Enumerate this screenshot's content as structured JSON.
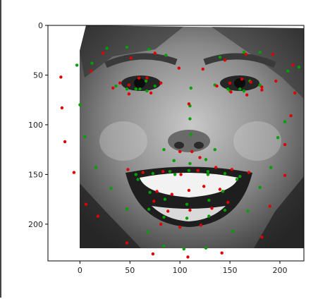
{
  "chart_data": {
    "type": "scatter",
    "background": "image",
    "xlim": [
      -32,
      224
    ],
    "ylim": [
      237,
      0
    ],
    "x_ticks": [
      0,
      50,
      100,
      150,
      200
    ],
    "y_ticks": [
      0,
      50,
      100,
      150,
      200
    ],
    "x_tick_labels": [
      "0",
      "50",
      "100",
      "150",
      "200"
    ],
    "y_tick_labels": [
      "0",
      "50",
      "100",
      "150",
      "200"
    ],
    "grid": false,
    "image_extent": {
      "x": [
        0,
        224
      ],
      "y": [
        0,
        224
      ]
    },
    "series": [
      {
        "color": "#00a000",
        "points": [
          [
            -3,
            40
          ],
          [
            12,
            38
          ],
          [
            27,
            23
          ],
          [
            47,
            22
          ],
          [
            69,
            24
          ],
          [
            86,
            30
          ],
          [
            140,
            32
          ],
          [
            164,
            27
          ],
          [
            180,
            27
          ],
          [
            208,
            46
          ],
          [
            219,
            42
          ],
          [
            0,
            80
          ],
          [
            5,
            112
          ],
          [
            16,
            143
          ],
          [
            31,
            164
          ],
          [
            47,
            185
          ],
          [
            68,
            208
          ],
          [
            84,
            222
          ],
          [
            104,
            225
          ],
          [
            126,
            224
          ],
          [
            153,
            207
          ],
          [
            168,
            187
          ],
          [
            180,
            163
          ],
          [
            191,
            143
          ],
          [
            198,
            113
          ],
          [
            205,
            97
          ],
          [
            36,
            61
          ],
          [
            47,
            64
          ],
          [
            60,
            64
          ],
          [
            66,
            56
          ],
          [
            75,
            61
          ],
          [
            135,
            60
          ],
          [
            148,
            64
          ],
          [
            160,
            64
          ],
          [
            170,
            56
          ],
          [
            180,
            60
          ],
          [
            56,
            64
          ],
          [
            67,
            66
          ],
          [
            150,
            66
          ],
          [
            164,
            66
          ],
          [
            111,
            63
          ],
          [
            110,
            81
          ],
          [
            110,
            94
          ],
          [
            111,
            110
          ],
          [
            84,
            125
          ],
          [
            94,
            136
          ],
          [
            110,
            139
          ],
          [
            126,
            135
          ],
          [
            135,
            125
          ],
          [
            56,
            150
          ],
          [
            73,
            149
          ],
          [
            90,
            147
          ],
          [
            109,
            146
          ],
          [
            128,
            147
          ],
          [
            145,
            149
          ],
          [
            160,
            152
          ],
          [
            70,
            168
          ],
          [
            85,
            175
          ],
          [
            107,
            180
          ],
          [
            129,
            176
          ],
          [
            143,
            167
          ],
          [
            58,
            155
          ],
          [
            95,
            150
          ],
          [
            128,
            150
          ],
          [
            157,
            155
          ],
          [
            69,
            185
          ],
          [
            84,
            193
          ],
          [
            107,
            194
          ],
          [
            129,
            192
          ],
          [
            145,
            186
          ]
        ]
      },
      {
        "color": "#e00000",
        "points": [
          [
            -19,
            52
          ],
          [
            -18,
            83
          ],
          [
            -15,
            117
          ],
          [
            -6,
            148
          ],
          [
            6,
            180
          ],
          [
            18,
            192
          ],
          [
            47,
            219
          ],
          [
            73,
            230
          ],
          [
            108,
            233
          ],
          [
            142,
            229
          ],
          [
            182,
            213
          ],
          [
            190,
            182
          ],
          [
            205,
            151
          ],
          [
            205,
            120
          ],
          [
            211,
            91
          ],
          [
            215,
            68
          ],
          [
            11,
            46
          ],
          [
            23,
            28
          ],
          [
            51,
            33
          ],
          [
            75,
            28
          ],
          [
            99,
            43
          ],
          [
            123,
            44
          ],
          [
            145,
            35
          ],
          [
            166,
            29
          ],
          [
            193,
            29
          ],
          [
            213,
            40
          ],
          [
            40,
            58
          ],
          [
            49,
            60
          ],
          [
            59,
            53
          ],
          [
            67,
            53
          ],
          [
            81,
            58
          ],
          [
            137,
            61
          ],
          [
            150,
            58
          ],
          [
            162,
            54
          ],
          [
            171,
            57
          ],
          [
            182,
            62
          ],
          [
            33,
            63
          ],
          [
            49,
            69
          ],
          [
            71,
            68
          ],
          [
            151,
            67
          ],
          [
            167,
            70
          ],
          [
            182,
            65
          ],
          [
            196,
            56
          ],
          [
            109,
            79
          ],
          [
            100,
            127
          ],
          [
            112,
            127
          ],
          [
            120,
            133
          ],
          [
            48,
            145
          ],
          [
            63,
            148
          ],
          [
            83,
            147
          ],
          [
            101,
            150
          ],
          [
            118,
            146
          ],
          [
            136,
            143
          ],
          [
            152,
            145
          ],
          [
            169,
            148
          ],
          [
            77,
            167
          ],
          [
            92,
            170
          ],
          [
            109,
            166
          ],
          [
            124,
            162
          ],
          [
            140,
            165
          ],
          [
            74,
            177
          ],
          [
            88,
            187
          ],
          [
            110,
            186
          ],
          [
            132,
            184
          ],
          [
            148,
            178
          ],
          [
            81,
            200
          ],
          [
            100,
            203
          ],
          [
            121,
            201
          ]
        ]
      }
    ]
  }
}
